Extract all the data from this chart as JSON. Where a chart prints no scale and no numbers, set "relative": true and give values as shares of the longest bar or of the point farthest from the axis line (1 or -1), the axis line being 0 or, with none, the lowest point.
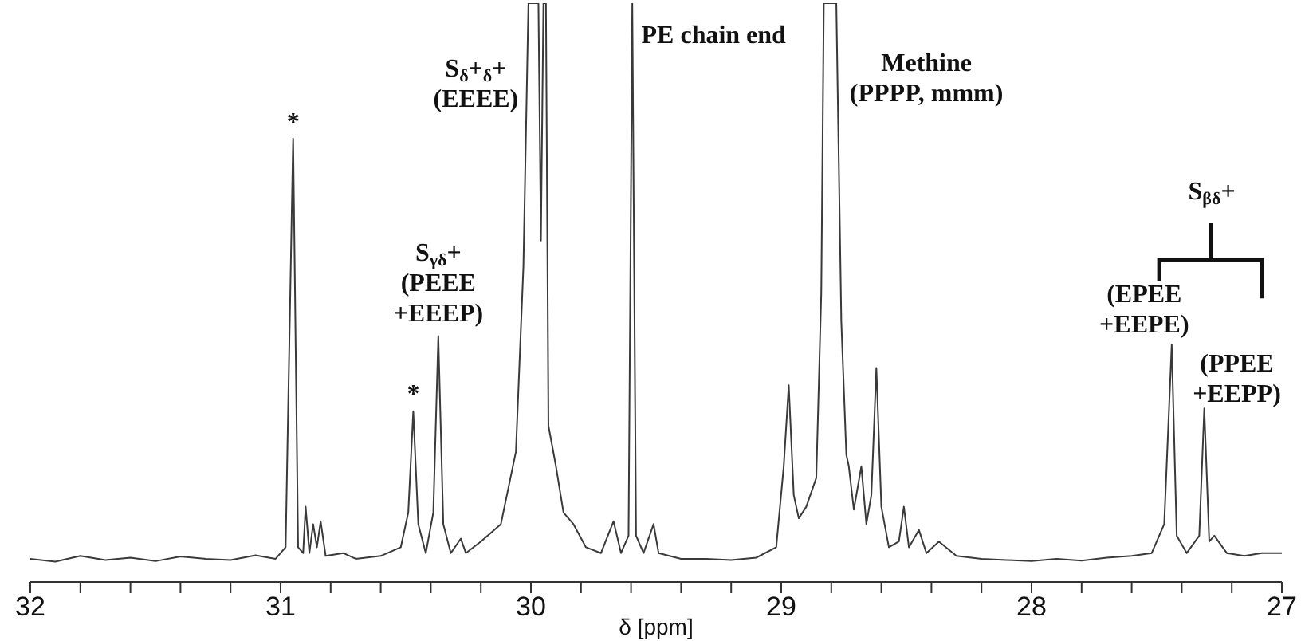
{
  "chart_data": {
    "type": "line",
    "relative": true,
    "xlabel": "δ [ppm]",
    "tick_labels": "x",
    "grid": false,
    "legend": false,
    "marker": "none",
    "line_style": "solid",
    "xlim": [
      32,
      27
    ],
    "xticks": [
      32,
      {
        "value": 31.8,
        "label": null
      },
      {
        "value": 31.6,
        "label": null
      },
      {
        "value": 31.4,
        "label": null
      },
      {
        "value": 31.2,
        "label": null
      },
      31,
      {
        "value": 30.8,
        "label": null
      },
      {
        "value": 30.6,
        "label": null
      },
      {
        "value": 30.4,
        "label": null
      },
      {
        "value": 30.2,
        "label": null
      },
      30,
      {
        "value": 29.8,
        "label": null
      },
      {
        "value": 29.6,
        "label": null
      },
      {
        "value": 29.4,
        "label": null
      },
      {
        "value": 29.2,
        "label": null
      },
      29,
      {
        "value": 28.8,
        "label": null
      },
      {
        "value": 28.6,
        "label": null
      },
      {
        "value": 28.4,
        "label": null
      },
      {
        "value": 28.2,
        "label": null
      },
      28,
      {
        "value": 27.8,
        "label": null
      },
      {
        "value": 27.6,
        "label": null
      },
      {
        "value": 27.4,
        "label": null
      },
      {
        "value": 27.2,
        "label": null
      },
      27
    ],
    "series": [
      {
        "color": "#3a3a3a",
        "x": [
          32.0,
          31.9,
          31.8,
          31.7,
          31.6,
          31.5,
          31.4,
          31.3,
          31.2,
          31.1,
          31.02,
          30.98,
          30.95,
          30.93,
          30.91,
          30.9,
          30.885,
          30.87,
          30.855,
          30.84,
          30.82,
          30.75,
          30.7,
          30.6,
          30.52,
          30.49,
          30.47,
          30.45,
          30.42,
          30.39,
          30.37,
          30.35,
          30.32,
          30.28,
          30.26,
          30.2,
          30.12,
          30.06,
          30.03,
          30.01,
          29.97,
          29.96,
          29.95,
          29.94,
          29.93,
          29.9,
          29.87,
          29.83,
          29.78,
          29.72,
          29.67,
          29.64,
          29.61,
          29.595,
          29.58,
          29.55,
          29.51,
          29.49,
          29.4,
          29.3,
          29.2,
          29.1,
          29.02,
          28.99,
          28.97,
          28.95,
          28.93,
          28.9,
          28.86,
          28.84,
          28.83,
          28.78,
          28.76,
          28.75,
          28.74,
          28.73,
          28.71,
          28.68,
          28.66,
          28.64,
          28.62,
          28.6,
          28.57,
          28.53,
          28.51,
          28.49,
          28.45,
          28.42,
          28.37,
          28.3,
          28.2,
          28.1,
          28.0,
          27.9,
          27.8,
          27.7,
          27.6,
          27.52,
          27.47,
          27.44,
          27.42,
          27.38,
          27.33,
          27.31,
          27.29,
          27.27,
          27.22,
          27.15,
          27.08,
          27.0
        ],
        "values": [
          0.04,
          0.035,
          0.045,
          0.038,
          0.042,
          0.036,
          0.044,
          0.04,
          0.038,
          0.046,
          0.04,
          0.06,
          0.766,
          0.06,
          0.05,
          0.13,
          0.05,
          0.1,
          0.06,
          0.105,
          0.045,
          0.05,
          0.04,
          0.045,
          0.06,
          0.12,
          0.295,
          0.1,
          0.05,
          0.12,
          0.425,
          0.1,
          0.05,
          0.075,
          0.05,
          0.07,
          0.1,
          0.225,
          0.545,
          1,
          1,
          0.59,
          1,
          1,
          0.27,
          0.2,
          0.12,
          0.1,
          0.06,
          0.05,
          0.105,
          0.05,
          0.08,
          1,
          0.08,
          0.05,
          0.1,
          0.05,
          0.04,
          0.04,
          0.038,
          0.042,
          0.06,
          0.2,
          0.34,
          0.15,
          0.11,
          0.13,
          0.18,
          0.5,
          1,
          1,
          0.45,
          0.335,
          0.22,
          0.2,
          0.125,
          0.2,
          0.1,
          0.15,
          0.37,
          0.13,
          0.06,
          0.07,
          0.13,
          0.06,
          0.09,
          0.05,
          0.07,
          0.045,
          0.04,
          0.038,
          0.036,
          0.04,
          0.037,
          0.042,
          0.045,
          0.05,
          0.1,
          0.41,
          0.08,
          0.05,
          0.08,
          0.3,
          0.07,
          0.08,
          0.05,
          0.045,
          0.05,
          0.05
        ]
      }
    ],
    "annotations": [
      {
        "text": "*",
        "x": 30.95,
        "y": 0.77
      },
      {
        "text": "*",
        "x": 30.47,
        "y": 0.3
      },
      {
        "text": "S$_{γδ}$+\n(PEEE\n+EEEP)",
        "x": 30.37,
        "y": 0.44
      },
      "S$_{δ}$+$_{δ}$+\n(EEEE)",
      "PE chain end",
      "Methine\n(PPPP, mmm)",
      "S$_{βδ}$+",
      "(EPEE\n+EEPE)",
      "(PPEE\n+EEPP)"
    ]
  }
}
